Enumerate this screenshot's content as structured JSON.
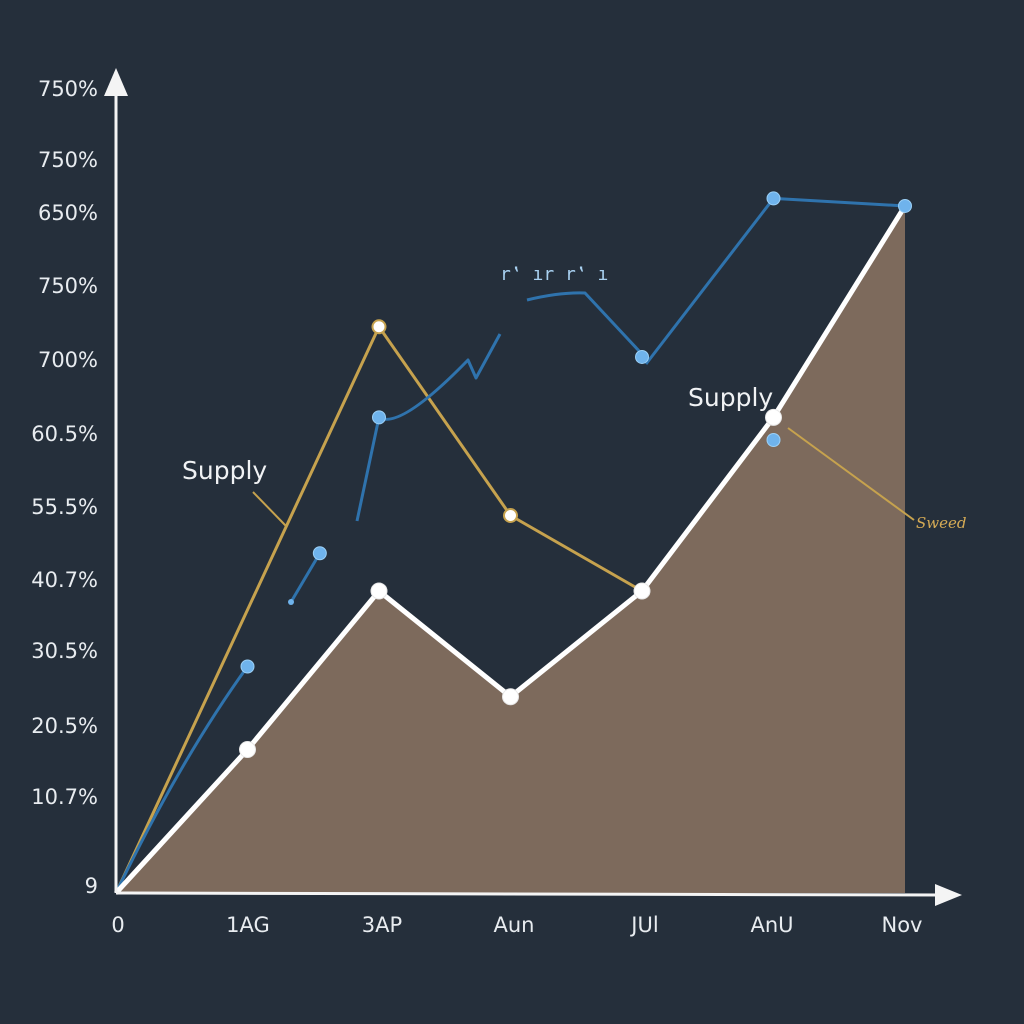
{
  "chart_data": {
    "type": "line",
    "x": [
      "0",
      "1AG",
      "3AP",
      "Aun",
      "JUl",
      "AnU",
      "Nov"
    ],
    "y_tick_labels": [
      "9",
      "10.7%",
      "20.5%",
      "30.5%",
      "40.7%",
      "55.5%",
      "60.5%",
      "700%",
      "750%",
      "650%",
      "750%",
      "750%"
    ],
    "series": [
      {
        "kind": "area",
        "color": "#ffffff",
        "fill": "#7d6a5c",
        "values": [
          0.0,
          1.9,
          4.0,
          2.6,
          4.0,
          6.3,
          9.1
        ]
      },
      {
        "kind": "line",
        "color": "#c6a24e",
        "values": [
          0.0,
          null,
          7.5,
          5.0,
          4.0,
          null,
          null
        ]
      },
      {
        "kind": "line",
        "color": "#2f73ad",
        "markers": [
          {
            "x": 1.0,
            "y": 3.0
          },
          {
            "x": 1.55,
            "y": 4.5
          },
          {
            "x": 2.0,
            "y": 6.3
          },
          {
            "x": 4.0,
            "y": 7.1
          },
          {
            "x": 5.0,
            "y": 9.2
          },
          {
            "x": 6.0,
            "y": 9.1
          },
          {
            "x": 5.0,
            "y": 6.0
          }
        ]
      }
    ],
    "annotations": [
      {
        "text": "Supply",
        "color": "#f0f2f4"
      },
      {
        "text": "Supply",
        "color": "#f0f2f4"
      },
      {
        "text": "Sweed",
        "color": "#d4aa55"
      },
      {
        "text": "r‛ ır r‛ ı",
        "color": "#a8d0f0"
      }
    ],
    "grid": false,
    "legend": "none",
    "title": "",
    "xlabel": "",
    "ylabel": ""
  }
}
